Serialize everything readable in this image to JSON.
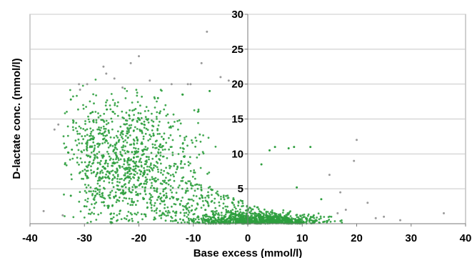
{
  "chart_data": {
    "type": "scatter",
    "xlabel": "Base excess (mmol/l)",
    "ylabel": "D-lactate conc. (mmol/l)",
    "xlim": [
      -40,
      40
    ],
    "ylim": [
      0,
      30
    ],
    "x_ticks": [
      -40,
      -30,
      -20,
      -10,
      0,
      10,
      20,
      30,
      40
    ],
    "y_ticks": [
      0,
      5,
      10,
      15,
      20,
      25,
      30
    ],
    "x_tick_labels": [
      "-40",
      "-30",
      "-20",
      "-10",
      "0",
      "10",
      "20",
      "30",
      "40"
    ],
    "y_tick_labels": [
      "",
      "5",
      "10",
      "15",
      "20",
      "25",
      "30"
    ],
    "grid": "horizontal",
    "y_axis_position": "x=0",
    "marker_color": "#2e9e3e",
    "outlier_color": "#9a9a9a",
    "series": [
      {
        "points": [
          [
            -37.5,
            1.8
          ],
          [
            -35.5,
            13.5
          ],
          [
            -34.8,
            14.2
          ],
          [
            -32.5,
            17.8
          ],
          [
            -33.0,
            10.2
          ],
          [
            -31.0,
            20.0
          ],
          [
            -30.8,
            19.2
          ],
          [
            -29.5,
            20.0
          ],
          [
            -28.5,
            16.0
          ],
          [
            -26.5,
            22.5
          ],
          [
            -26.0,
            21.5
          ],
          [
            -24.5,
            20.8
          ],
          [
            -23.0,
            19.5
          ],
          [
            -21.5,
            23.0
          ],
          [
            -20.0,
            24.0
          ],
          [
            -18.0,
            20.5
          ],
          [
            -16.5,
            18.0
          ],
          [
            -14.0,
            20.0
          ],
          [
            -12.0,
            18.5
          ],
          [
            -11.0,
            20.0
          ],
          [
            -10.5,
            20.0
          ],
          [
            -8.5,
            23.0
          ],
          [
            -7.5,
            27.5
          ],
          [
            -7.0,
            19.0
          ],
          [
            -5.0,
            21.0
          ],
          [
            -3.5,
            20.5
          ],
          [
            -1.5,
            20.0
          ],
          [
            2.5,
            8.5
          ],
          [
            5.0,
            11.0
          ],
          [
            4.0,
            10.5
          ],
          [
            8.5,
            11.0
          ],
          [
            7.5,
            10.8
          ],
          [
            11.5,
            11.0
          ],
          [
            13.5,
            3.5
          ],
          [
            15.0,
            7.0
          ],
          [
            19.5,
            9.0
          ],
          [
            20.0,
            12.0
          ],
          [
            22.0,
            3.0
          ],
          [
            23.5,
            0.8
          ],
          [
            25.0,
            1.0
          ],
          [
            28.0,
            0.5
          ],
          [
            36.0,
            1.5
          ],
          [
            17.0,
            4.5
          ],
          [
            9.0,
            5.2
          ],
          [
            -28.0,
            4.0
          ],
          [
            -32.5,
            4.0
          ],
          [
            -30.0,
            2.5
          ],
          [
            -34.0,
            1.2
          ],
          [
            16.5,
            1.5
          ],
          [
            18.0,
            2.0
          ]
        ]
      }
    ]
  }
}
